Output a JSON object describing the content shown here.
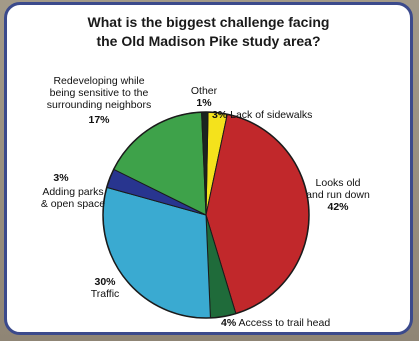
{
  "chart_data": {
    "type": "pie",
    "title_line1": "What is the biggest challenge facing",
    "title_line2": "the Old Madison Pike study area?",
    "slices": [
      {
        "label": "Lack of sidewalks",
        "label_lines": [
          "Lack of sidewalks"
        ],
        "value": 3,
        "pct": "3%",
        "color": "#f4e21c"
      },
      {
        "label": "Looks old and run down",
        "label_lines": [
          "Looks old",
          "and run down"
        ],
        "value": 42,
        "pct": "42%",
        "color": "#c1282b"
      },
      {
        "label": "Access to trail head",
        "label_lines": [
          "Access to trail head"
        ],
        "value": 4,
        "pct": "4%",
        "color": "#1f6b3a"
      },
      {
        "label": "Traffic",
        "label_lines": [
          "Traffic"
        ],
        "value": 30,
        "pct": "30%",
        "color": "#3aaad1"
      },
      {
        "label": "Adding parks & open space",
        "label_lines": [
          "Adding parks",
          "& open space"
        ],
        "value": 3,
        "pct": "3%",
        "color": "#28358f"
      },
      {
        "label": "Redeveloping while being sensitive to the surrounding neighbors",
        "label_lines": [
          "Redeveloping while",
          "being sensitive to the",
          "surrounding neighbors"
        ],
        "value": 17,
        "pct": "17%",
        "color": "#3ea24a"
      },
      {
        "label": "Other",
        "label_lines": [
          "Other"
        ],
        "value": 1,
        "pct": "1%",
        "color": "#1a2420"
      }
    ]
  }
}
